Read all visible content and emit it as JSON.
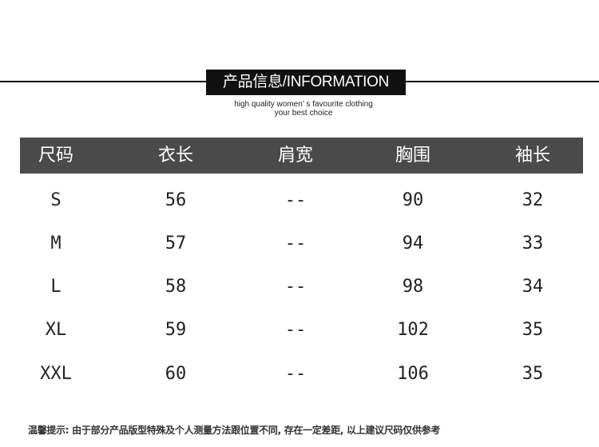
{
  "header": {
    "title": "产品信息/INFORMATION",
    "subtitle_line1": "high quality women’ s favourite clothing",
    "subtitle_line2": "your best choice"
  },
  "table": {
    "columns": [
      "尺码",
      "衣长",
      "肩宽",
      "胸围",
      "袖长"
    ],
    "rows": [
      [
        "S",
        "56",
        "--",
        "90",
        "32"
      ],
      [
        "M",
        "57",
        "--",
        "94",
        "33"
      ],
      [
        "L",
        "58",
        "--",
        "98",
        "34"
      ],
      [
        "XL",
        "59",
        "--",
        "102",
        "35"
      ],
      [
        "XXL",
        "60",
        "--",
        "106",
        "35"
      ]
    ]
  },
  "note": "温馨提示: 由于部分产品版型特殊及个人测量方法跟位置不同, 存在一定差距, 以上建议尺码仅供参考"
}
